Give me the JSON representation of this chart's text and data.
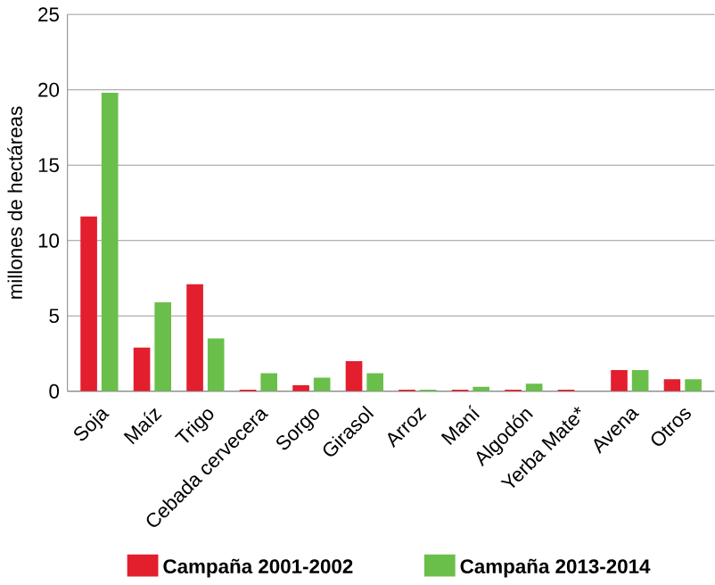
{
  "chart_data": {
    "type": "bar",
    "ylabel": "millones de hectáreas",
    "categories": [
      "Soja",
      "Maíz",
      "Trigo",
      "Cebada cervecera",
      "Sorgo",
      "Girasol",
      "Arroz",
      "Maní",
      "Algodón",
      "Yerba Mate*",
      "Avena",
      "Otros"
    ],
    "series": [
      {
        "name": "Campaña 2001-2002",
        "color": "#e31e2d",
        "values": [
          11.6,
          2.9,
          7.1,
          0.1,
          0.4,
          2.0,
          0.1,
          0.1,
          0.1,
          0.1,
          1.4,
          0.8
        ]
      },
      {
        "name": "Campaña 2013-2014",
        "color": "#6abf4b",
        "values": [
          19.8,
          5.9,
          3.5,
          1.2,
          0.9,
          1.2,
          0.1,
          0.3,
          0.5,
          0.0,
          1.4,
          0.8
        ]
      }
    ],
    "ylim": [
      0,
      25
    ],
    "yticks": [
      0,
      5,
      10,
      15,
      20,
      25
    ],
    "grid": "y",
    "legend": "bottom"
  }
}
